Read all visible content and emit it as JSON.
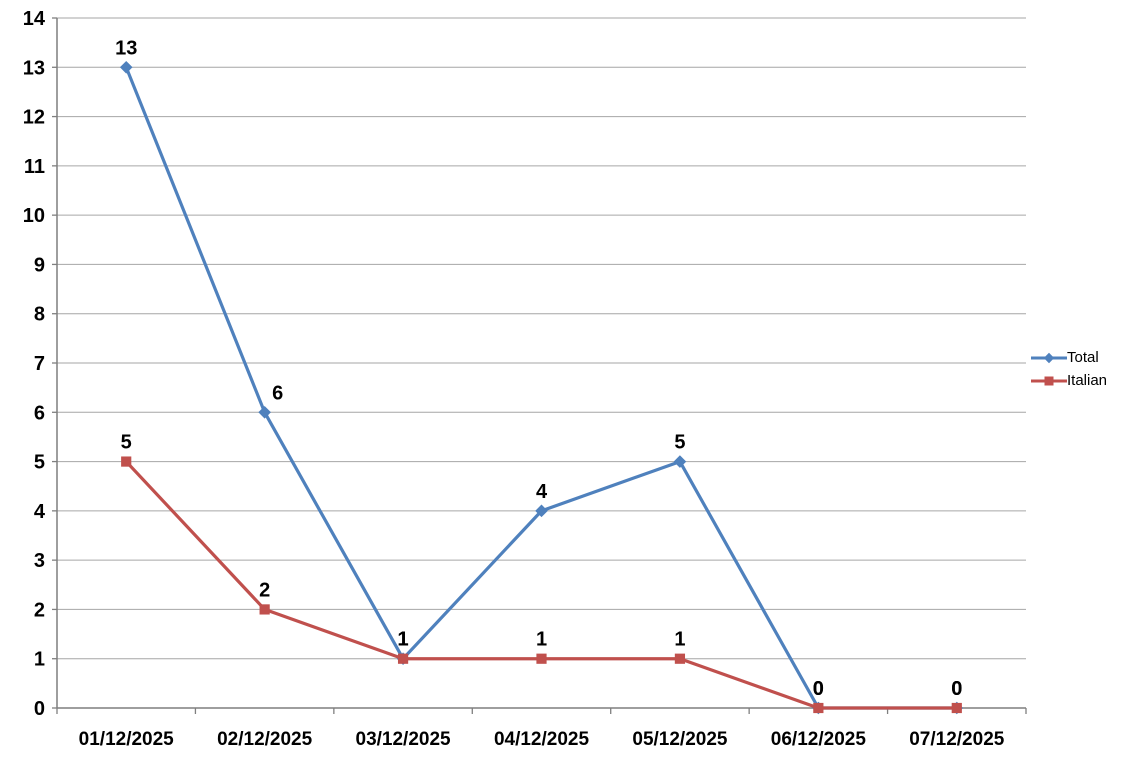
{
  "chart_data": {
    "type": "line",
    "title": "",
    "xlabel": "",
    "ylabel": "",
    "categories": [
      "01/12/2025",
      "02/12/2025",
      "03/12/2025",
      "04/12/2025",
      "05/12/2025",
      "06/12/2025",
      "07/12/2025"
    ],
    "series": [
      {
        "name": "Total",
        "color": "#4F81BD",
        "marker": "diamond",
        "values": [
          13,
          6,
          1,
          4,
          5,
          0,
          0
        ]
      },
      {
        "name": "Italian",
        "color": "#C0504D",
        "marker": "square",
        "values": [
          5,
          2,
          1,
          1,
          1,
          0,
          0
        ]
      }
    ],
    "data_labels": true,
    "ylim": [
      0,
      14
    ],
    "ytick_step": 1,
    "grid": "horizontal",
    "grid_color": "#A6A6A6",
    "axis_color": "#7F7F7F",
    "label_color": "#000000",
    "background": "#FFFFFF",
    "legend_position": "right"
  }
}
